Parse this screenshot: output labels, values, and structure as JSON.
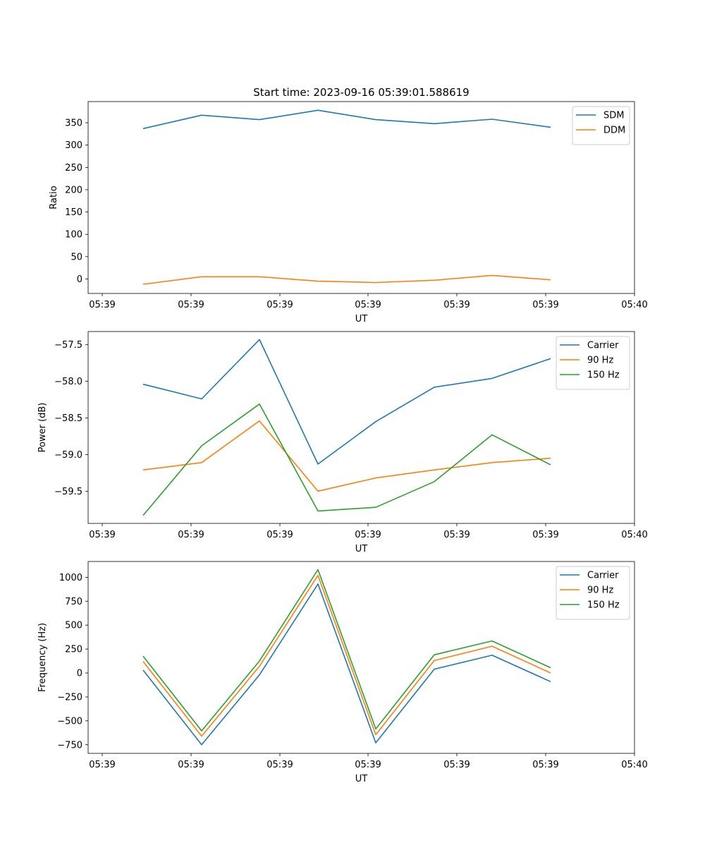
{
  "chart_data": [
    {
      "type": "line",
      "title": "Start time: 2023-09-16 05:39:01.588619",
      "xlabel": "UT",
      "ylabel": "Ratio",
      "x_tick_labels": [
        "05:39",
        "05:39",
        "05:39",
        "05:39",
        "05:39",
        "05:39",
        "05:40"
      ],
      "y_ticks": [
        0,
        50,
        100,
        150,
        200,
        250,
        300,
        350
      ],
      "ylim": [
        -32.5,
        397.5
      ],
      "legend_position": "upper-right",
      "series": [
        {
          "name": "SDM",
          "color": "#1f77b4",
          "values": [
            337,
            367,
            357,
            378,
            357,
            348,
            358,
            340
          ]
        },
        {
          "name": "DDM",
          "color": "#ff7f0e",
          "values": [
            -12,
            5,
            5,
            -5,
            -8,
            -3,
            8,
            -2
          ]
        }
      ]
    },
    {
      "type": "line",
      "title": "",
      "xlabel": "UT",
      "ylabel": "Power (dB)",
      "x_tick_labels": [
        "05:39",
        "05:39",
        "05:39",
        "05:39",
        "05:39",
        "05:39",
        "05:40"
      ],
      "y_ticks": [
        -59.5,
        -59.0,
        -58.5,
        -58.0,
        -57.5
      ],
      "y_tick_labels": [
        "−59.5",
        "−59.0",
        "−58.5",
        "−58.0",
        "−57.5"
      ],
      "ylim": [
        -59.94,
        -57.32
      ],
      "legend_position": "upper-right",
      "series": [
        {
          "name": "Carrier",
          "color": "#1f77b4",
          "values": [
            -58.04,
            -58.24,
            -57.43,
            -59.13,
            -58.55,
            -58.08,
            -57.96,
            -57.69
          ]
        },
        {
          "name": "90 Hz",
          "color": "#ff7f0e",
          "values": [
            -59.21,
            -59.11,
            -58.54,
            -59.5,
            -59.32,
            -59.21,
            -59.11,
            -59.05
          ]
        },
        {
          "name": "150 Hz",
          "color": "#2ca02c",
          "values": [
            -59.83,
            -58.88,
            -58.31,
            -59.77,
            -59.72,
            -59.37,
            -58.73,
            -59.14
          ]
        }
      ]
    },
    {
      "type": "line",
      "title": "",
      "xlabel": "UT",
      "ylabel": "Frequency (Hz)",
      "x_tick_labels": [
        "05:39",
        "05:39",
        "05:39",
        "05:39",
        "05:39",
        "05:39",
        "05:40"
      ],
      "y_ticks": [
        -750,
        -500,
        -250,
        0,
        250,
        500,
        750,
        1000
      ],
      "y_tick_labels": [
        "−750",
        "−500",
        "−250",
        "0",
        "250",
        "500",
        "750",
        "1000"
      ],
      "ylim": [
        -840,
        1165
      ],
      "legend_position": "upper-right",
      "series": [
        {
          "name": "Carrier",
          "color": "#1f77b4",
          "values": [
            30,
            -750,
            -20,
            930,
            -730,
            40,
            185,
            -90
          ]
        },
        {
          "name": "90 Hz",
          "color": "#ff7f0e",
          "values": [
            120,
            -660,
            70,
            1020,
            -645,
            130,
            280,
            0
          ]
        },
        {
          "name": "150 Hz",
          "color": "#2ca02c",
          "values": [
            175,
            -605,
            125,
            1080,
            -585,
            190,
            335,
            55
          ]
        }
      ]
    }
  ]
}
